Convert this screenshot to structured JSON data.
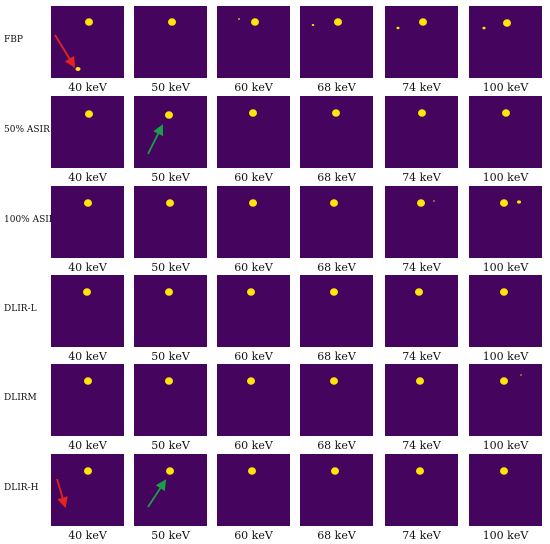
{
  "figure": {
    "rows": [
      {
        "label": "FBP"
      },
      {
        "label": "50% ASIR"
      },
      {
        "label": "100% ASIR"
      },
      {
        "label": "DLIR-L"
      },
      {
        "label": "DLIRM"
      },
      {
        "label": "DLIR-H"
      }
    ],
    "columns": [
      {
        "label": "40 keV"
      },
      {
        "label": "50 keV"
      },
      {
        "label": "60 keV"
      },
      {
        "label": "68 keV"
      },
      {
        "label": "74 keV"
      },
      {
        "label": "100 keV"
      }
    ],
    "colors": {
      "tile_background": "#45055f",
      "lesion": "#ffe40a",
      "red_arrow": "#e4231e",
      "green_arrow": "#1a9d48"
    },
    "annotations": [
      {
        "row": 0,
        "col": 0,
        "arrow": "red"
      },
      {
        "row": 1,
        "col": 1,
        "arrow": "green"
      },
      {
        "row": 5,
        "col": 0,
        "arrow": "red"
      },
      {
        "row": 5,
        "col": 1,
        "arrow": "green"
      }
    ]
  }
}
